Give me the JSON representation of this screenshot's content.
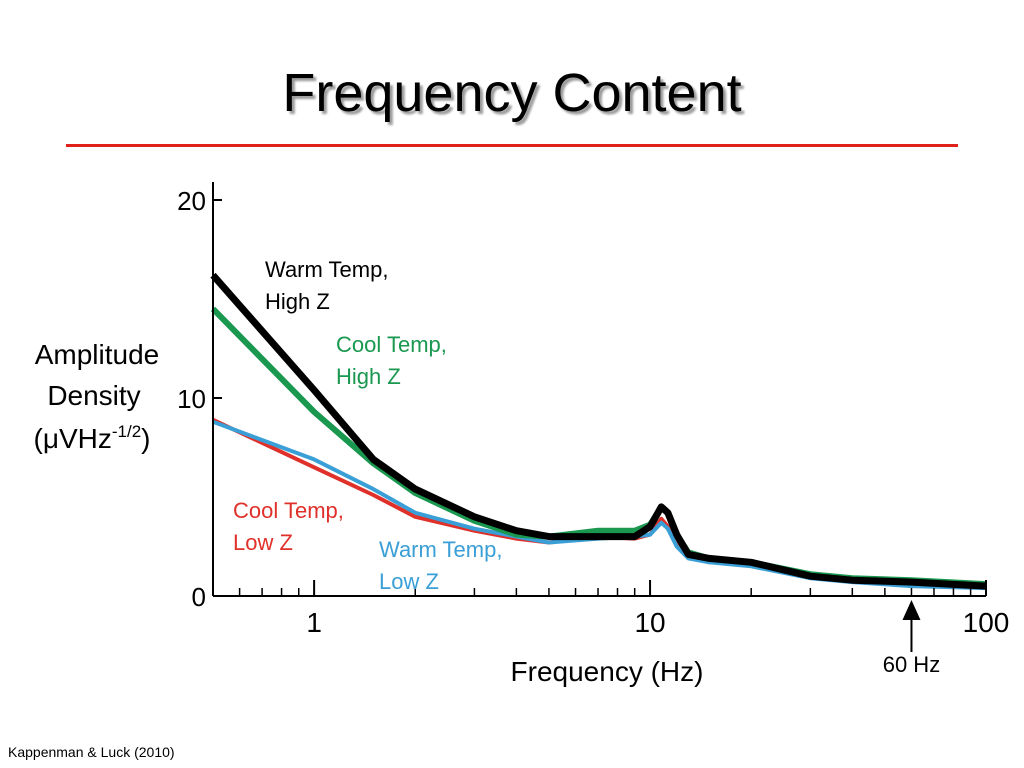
{
  "slide": {
    "title": "Frequency Content",
    "citation": "Kappenman & Luck (2010)",
    "title_rule_color": "#e0201a"
  },
  "chart_data": {
    "type": "line",
    "title": "",
    "xlabel": "Frequency (Hz)",
    "ylabel_lines": [
      "Amplitude",
      "Density",
      "(μVHz-1/2)"
    ],
    "xscale": "log",
    "xlim": [
      0.5,
      100
    ],
    "ylim": [
      0,
      20
    ],
    "xticks": [
      1,
      10,
      100
    ],
    "xtick_labels": [
      "1",
      "10",
      "100"
    ],
    "yticks": [
      0,
      10,
      20
    ],
    "ytick_labels": [
      "0",
      "10",
      "20"
    ],
    "grid": false,
    "legend": "none (series labelled inline)",
    "annotation": {
      "label": "60 Hz",
      "x": 60
    },
    "series": [
      {
        "name": "Cool Temp, Low Z",
        "label_lines": [
          "Cool Temp,",
          "Low Z"
        ],
        "color": "#e0302a",
        "values": [
          [
            0.5,
            8.9
          ],
          [
            1.0,
            6.5
          ],
          [
            1.5,
            5.1
          ],
          [
            2.0,
            4.0
          ],
          [
            3.0,
            3.3
          ],
          [
            4.0,
            2.9
          ],
          [
            5.0,
            2.7
          ],
          [
            7.0,
            3.0
          ],
          [
            9.0,
            2.9
          ],
          [
            10.0,
            3.1
          ],
          [
            10.8,
            3.9
          ],
          [
            11.3,
            3.5
          ],
          [
            12.0,
            2.6
          ],
          [
            13.0,
            2.0
          ],
          [
            15.0,
            1.7
          ],
          [
            20.0,
            1.6
          ],
          [
            30.0,
            1.0
          ],
          [
            40.0,
            0.8
          ],
          [
            60.0,
            0.6
          ],
          [
            100.0,
            0.5
          ]
        ]
      },
      {
        "name": "Warm Temp, Low Z",
        "label_lines": [
          "Warm Temp,",
          "Low Z"
        ],
        "color": "#3a9fd6",
        "values": [
          [
            0.5,
            8.8
          ],
          [
            1.0,
            6.9
          ],
          [
            1.5,
            5.4
          ],
          [
            2.0,
            4.2
          ],
          [
            3.0,
            3.4
          ],
          [
            4.0,
            3.0
          ],
          [
            5.0,
            2.7
          ],
          [
            7.0,
            2.9
          ],
          [
            9.0,
            3.0
          ],
          [
            10.0,
            3.1
          ],
          [
            10.8,
            3.7
          ],
          [
            11.3,
            3.4
          ],
          [
            12.0,
            2.5
          ],
          [
            13.0,
            1.9
          ],
          [
            15.0,
            1.7
          ],
          [
            20.0,
            1.5
          ],
          [
            30.0,
            0.9
          ],
          [
            40.0,
            0.7
          ],
          [
            60.0,
            0.5
          ],
          [
            100.0,
            0.4
          ]
        ]
      },
      {
        "name": "Cool Temp, High Z",
        "label_lines": [
          "Cool Temp,",
          "High Z"
        ],
        "color": "#1a9850",
        "values": [
          [
            0.5,
            14.5
          ],
          [
            1.0,
            9.3
          ],
          [
            1.5,
            6.7
          ],
          [
            2.0,
            5.2
          ],
          [
            3.0,
            3.8
          ],
          [
            4.0,
            3.1
          ],
          [
            5.0,
            3.0
          ],
          [
            7.0,
            3.3
          ],
          [
            9.0,
            3.3
          ],
          [
            10.0,
            3.6
          ],
          [
            10.8,
            4.5
          ],
          [
            11.3,
            4.2
          ],
          [
            12.0,
            3.1
          ],
          [
            13.0,
            2.2
          ],
          [
            15.0,
            1.9
          ],
          [
            20.0,
            1.7
          ],
          [
            30.0,
            1.1
          ],
          [
            40.0,
            0.9
          ],
          [
            60.0,
            0.8
          ],
          [
            100.0,
            0.6
          ]
        ]
      },
      {
        "name": "Warm Temp, High Z",
        "label_lines": [
          "Warm Temp,",
          "High Z"
        ],
        "color": "#000000",
        "values": [
          [
            0.5,
            16.2
          ],
          [
            1.0,
            10.4
          ],
          [
            1.5,
            6.9
          ],
          [
            2.0,
            5.4
          ],
          [
            3.0,
            4.0
          ],
          [
            4.0,
            3.3
          ],
          [
            5.0,
            3.0
          ],
          [
            7.0,
            3.0
          ],
          [
            9.0,
            3.0
          ],
          [
            10.0,
            3.5
          ],
          [
            10.8,
            4.5
          ],
          [
            11.3,
            4.2
          ],
          [
            12.0,
            3.1
          ],
          [
            13.0,
            2.1
          ],
          [
            15.0,
            1.9
          ],
          [
            20.0,
            1.7
          ],
          [
            30.0,
            1.0
          ],
          [
            40.0,
            0.8
          ],
          [
            60.0,
            0.7
          ],
          [
            100.0,
            0.5
          ]
        ]
      }
    ]
  }
}
